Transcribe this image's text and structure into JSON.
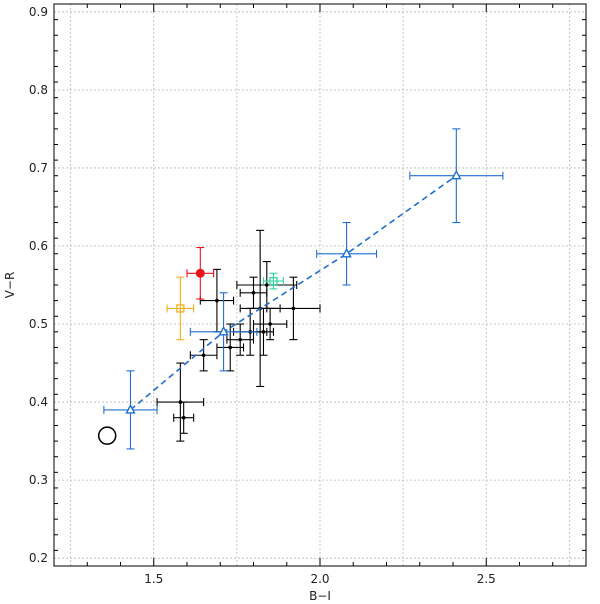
{
  "chart_data": {
    "type": "scatter",
    "title": "",
    "xlabel": "B−I",
    "ylabel": "V−R",
    "xlim": [
      1.2,
      2.8
    ],
    "ylim": [
      0.19,
      0.91
    ],
    "xticks": [
      1.5,
      2.0,
      2.5
    ],
    "xtick_labels": [
      "1.5",
      "2.0",
      "2.5"
    ],
    "yticks": [
      0.2,
      0.3,
      0.4,
      0.5,
      0.6,
      0.7,
      0.8,
      0.9
    ],
    "ytick_labels": [
      "0.2",
      "0.3",
      "0.4",
      "0.5",
      "0.6",
      "0.7",
      "0.8",
      "0.9"
    ],
    "grid": true,
    "colors": {
      "black": "#000000",
      "blue": "#1f6fd1",
      "red": "#e8141e",
      "orange": "#f0b020",
      "green": "#35d7a0"
    },
    "series": [
      {
        "name": "black-points",
        "marker": "dot",
        "color": "#000000",
        "points": [
          {
            "x": 1.58,
            "y": 0.4,
            "xerr": 0.07,
            "yerr": 0.05
          },
          {
            "x": 1.59,
            "y": 0.38,
            "xerr": 0.03,
            "yerr": 0.02
          },
          {
            "x": 1.65,
            "y": 0.46,
            "xerr": 0.04,
            "yerr": 0.02
          },
          {
            "x": 1.69,
            "y": 0.53,
            "xerr": 0.05,
            "yerr": 0.04
          },
          {
            "x": 1.73,
            "y": 0.47,
            "xerr": 0.04,
            "yerr": 0.03
          },
          {
            "x": 1.76,
            "y": 0.48,
            "xerr": 0.04,
            "yerr": 0.02
          },
          {
            "x": 1.79,
            "y": 0.49,
            "xerr": 0.05,
            "yerr": 0.03
          },
          {
            "x": 1.8,
            "y": 0.54,
            "xerr": 0.04,
            "yerr": 0.02
          },
          {
            "x": 1.82,
            "y": 0.52,
            "xerr": 0.06,
            "yerr": 0.1
          },
          {
            "x": 1.83,
            "y": 0.49,
            "xerr": 0.03,
            "yerr": 0.03
          },
          {
            "x": 1.84,
            "y": 0.55,
            "xerr": 0.09,
            "yerr": 0.03
          },
          {
            "x": 1.85,
            "y": 0.5,
            "xerr": 0.05,
            "yerr": 0.02
          },
          {
            "x": 1.92,
            "y": 0.52,
            "xerr": 0.08,
            "yerr": 0.04
          }
        ]
      },
      {
        "name": "blue-triangles",
        "marker": "triangle",
        "color": "#1f6fd1",
        "connect": true,
        "points": [
          {
            "x": 1.43,
            "y": 0.39,
            "xerr": 0.08,
            "yerr": 0.05
          },
          {
            "x": 1.71,
            "y": 0.49,
            "xerr": 0.1,
            "yerr": 0.05
          },
          {
            "x": 2.08,
            "y": 0.59,
            "xerr": 0.09,
            "yerr": 0.04
          },
          {
            "x": 2.41,
            "y": 0.69,
            "xerr": 0.14,
            "yerr": 0.06
          }
        ]
      },
      {
        "name": "red-filled-circle",
        "marker": "filled-circle",
        "color": "#e8141e",
        "points": [
          {
            "x": 1.64,
            "y": 0.565,
            "xerr": 0.04,
            "yerr": 0.033
          }
        ]
      },
      {
        "name": "orange-square",
        "marker": "square",
        "color": "#f0b020",
        "points": [
          {
            "x": 1.58,
            "y": 0.52,
            "xerr": 0.04,
            "yerr": 0.04
          }
        ]
      },
      {
        "name": "green-square",
        "marker": "square",
        "color": "#35d7a0",
        "points": [
          {
            "x": 1.86,
            "y": 0.555,
            "xerr": 0.03,
            "yerr": 0.01
          }
        ]
      },
      {
        "name": "open-circle",
        "marker": "open-circle",
        "color": "#000000",
        "points": [
          {
            "x": 1.36,
            "y": 0.357
          }
        ]
      }
    ]
  }
}
